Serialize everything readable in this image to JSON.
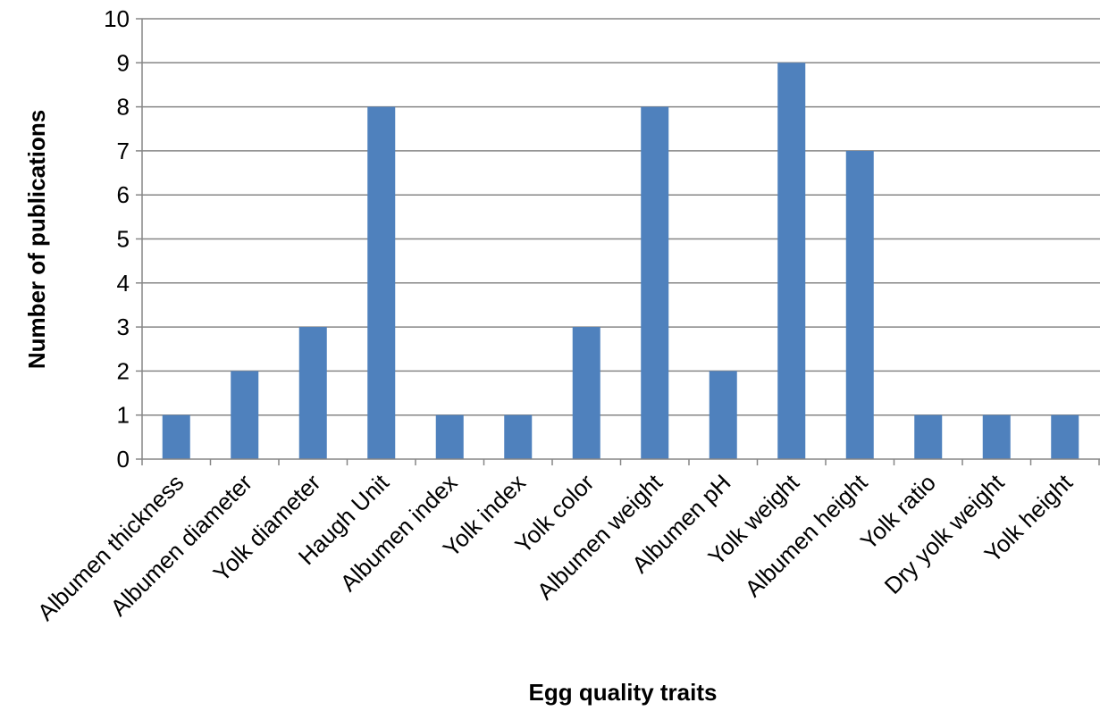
{
  "chart_data": {
    "type": "bar",
    "categories": [
      "Albumen thickness",
      "Albumen diameter",
      "Yolk diameter",
      "Haugh Unit",
      "Albumen index",
      "Yolk index",
      "Yolk color",
      "Albumen weight",
      "Albumen pH",
      "Yolk weight",
      "Albumen height",
      "Yolk ratio",
      "Dry yolk weight",
      "Yolk height"
    ],
    "values": [
      1,
      2,
      3,
      8,
      1,
      1,
      3,
      8,
      2,
      9,
      7,
      1,
      1,
      1
    ],
    "title": "",
    "xlabel": "Egg quality traits",
    "ylabel": "Number of publications",
    "ylim": [
      0,
      10
    ],
    "yticks": [
      "0",
      "1",
      "2",
      "3",
      "4",
      "5",
      "6",
      "7",
      "8",
      "9",
      "10"
    ],
    "grid": true,
    "legend": "none",
    "bar_color": "#4F81BD"
  }
}
